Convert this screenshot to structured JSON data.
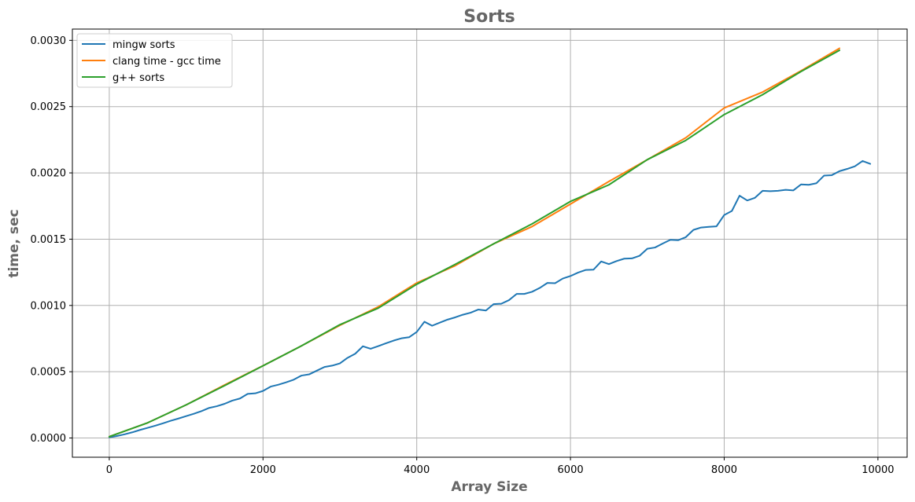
{
  "chart_data": {
    "type": "line",
    "title": "Sorts",
    "xlabel": "Array Size",
    "ylabel": "time, sec",
    "xlim": [
      -480,
      10380
    ],
    "ylim": [
      -0.000145,
      0.003085
    ],
    "x_ticks": [
      0,
      2000,
      4000,
      6000,
      8000,
      10000
    ],
    "x_tick_labels": [
      "0",
      "2000",
      "4000",
      "6000",
      "8000",
      "10000"
    ],
    "y_ticks": [
      0.0,
      0.0005,
      0.001,
      0.0015,
      0.002,
      0.0025,
      0.003
    ],
    "y_tick_labels": [
      "0.0000",
      "0.0005",
      "0.0010",
      "0.0015",
      "0.0020",
      "0.0025",
      "0.0030"
    ],
    "grid": true,
    "legend_position": "top-left",
    "series": [
      {
        "name": "mingw sorts",
        "color": "#1f77b4",
        "x": [
          0,
          100,
          200,
          300,
          400,
          500,
          600,
          700,
          800,
          900,
          1000,
          1100,
          1200,
          1300,
          1400,
          1500,
          1600,
          1700,
          1800,
          1900,
          2000,
          2100,
          2200,
          2300,
          2400,
          2500,
          2600,
          2700,
          2800,
          2900,
          3000,
          3100,
          3200,
          3300,
          3400,
          3500,
          3600,
          3700,
          3800,
          3900,
          4000,
          4100,
          4200,
          4300,
          4400,
          4500,
          4600,
          4700,
          4800,
          4900,
          5000,
          5100,
          5200,
          5300,
          5400,
          5500,
          5600,
          5700,
          5800,
          5900,
          6000,
          6100,
          6200,
          6300,
          6400,
          6500,
          6600,
          6700,
          6800,
          6900,
          7000,
          7100,
          7200,
          7300,
          7400,
          7500,
          7600,
          7700,
          7800,
          7900,
          8000,
          8100,
          8200,
          8300,
          8400,
          8500,
          8600,
          8700,
          8800,
          8900,
          9000,
          9100,
          9200,
          9300,
          9400,
          9500,
          9600,
          9700,
          9800,
          9900
        ],
        "y": [
          5e-06,
          1.5e-05,
          2.8e-05,
          4.3e-05,
          6.1e-05,
          7.7e-05,
          9.3e-05,
          0.000111,
          0.00013,
          0.000147,
          0.000165,
          0.000183,
          0.000203,
          0.000227,
          0.00024,
          0.000258,
          0.000282,
          0.000298,
          0.000333,
          0.000337,
          0.000355,
          0.000388,
          0.000402,
          0.00042,
          0.00044,
          0.000471,
          0.00048,
          0.000508,
          0.000536,
          0.000546,
          0.000563,
          0.000605,
          0.000636,
          0.000692,
          0.000673,
          0.000693,
          0.000715,
          0.000735,
          0.000752,
          0.00076,
          0.0008,
          0.000877,
          0.000847,
          0.00087,
          0.000893,
          0.00091,
          0.00093,
          0.000945,
          0.000969,
          0.000962,
          0.00101,
          0.001013,
          0.00104,
          0.001087,
          0.001087,
          0.001103,
          0.001132,
          0.00117,
          0.001168,
          0.001203,
          0.001222,
          0.001248,
          0.001268,
          0.00127,
          0.001332,
          0.001312,
          0.001335,
          0.001353,
          0.001355,
          0.001375,
          0.001428,
          0.001437,
          0.001467,
          0.001495,
          0.001492,
          0.001515,
          0.00157,
          0.001588,
          0.001593,
          0.001597,
          0.001682,
          0.001713,
          0.001828,
          0.001792,
          0.001812,
          0.001865,
          0.001862,
          0.001865,
          0.001872,
          0.001868,
          0.001913,
          0.00191,
          0.001922,
          0.00198,
          0.001983,
          0.002013,
          0.00203,
          0.00205,
          0.00209,
          0.002068
        ]
      },
      {
        "name": "clang time - gcc time",
        "color": "#ff7f0e",
        "x": [
          0,
          500,
          1000,
          1500,
          2000,
          2500,
          3000,
          3500,
          4000,
          4500,
          5000,
          5500,
          6000,
          6500,
          7000,
          7500,
          8000,
          8500,
          9000,
          9500
        ],
        "y": [
          1e-05,
          0.000115,
          0.00025,
          0.0004,
          0.000545,
          0.000695,
          0.00085,
          0.00099,
          0.00117,
          0.0013,
          0.001465,
          0.001595,
          0.001765,
          0.001935,
          0.0021,
          0.002265,
          0.00249,
          0.00261,
          0.00277,
          0.00294
        ]
      },
      {
        "name": "g++ sorts",
        "color": "#2ca02c",
        "x": [
          0,
          500,
          1000,
          1500,
          2000,
          2500,
          3000,
          3500,
          4000,
          4500,
          5000,
          5500,
          6000,
          6500,
          7000,
          7500,
          8000,
          8500,
          9000,
          9500
        ],
        "y": [
          1e-05,
          0.000115,
          0.00025,
          0.000395,
          0.000545,
          0.000695,
          0.000855,
          0.00098,
          0.00116,
          0.00131,
          0.001465,
          0.001615,
          0.001785,
          0.00191,
          0.0021,
          0.002245,
          0.00244,
          0.00259,
          0.002765,
          0.002925
        ]
      }
    ]
  }
}
